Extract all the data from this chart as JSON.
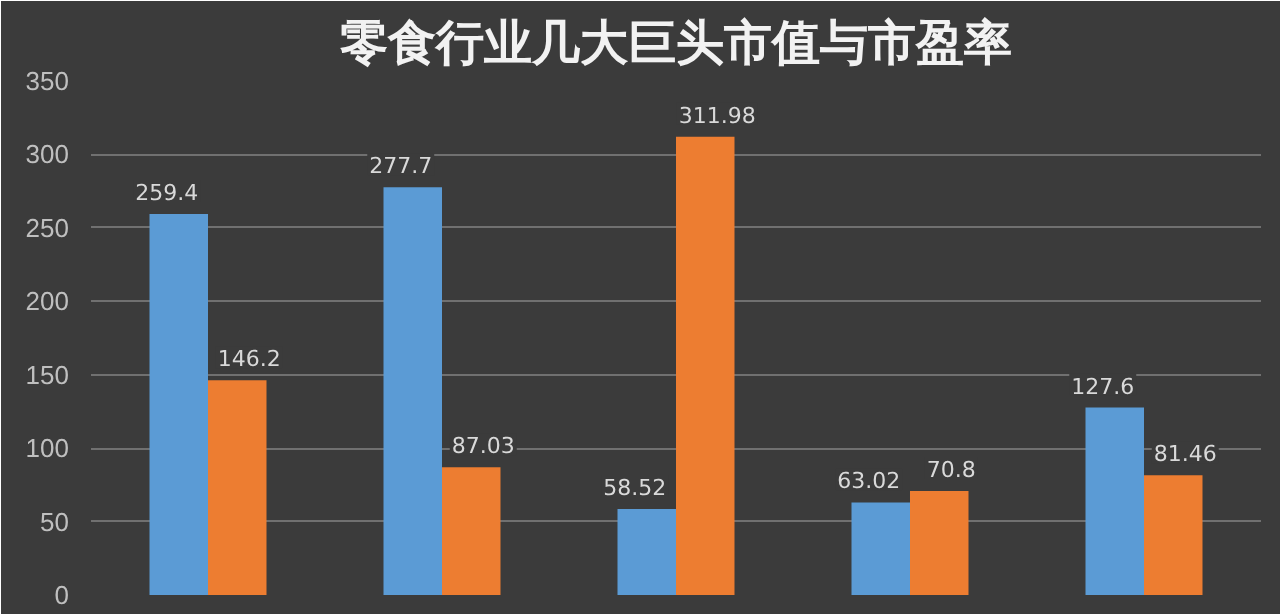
{
  "chart_data": {
    "type": "bar",
    "title": "零食行业几大巨头市值与市盈率",
    "categories": [
      null,
      null,
      null,
      null,
      null
    ],
    "series": [
      {
        "color": "#5b9bd5",
        "values": [
          259.4,
          277.7,
          58.52,
          63.02,
          127.6
        ]
      },
      {
        "color": "#ed7d31",
        "values": [
          146.2,
          87.03,
          311.98,
          70.8,
          81.46
        ]
      }
    ],
    "ylim": [
      0,
      350
    ],
    "yticks": [
      0,
      50,
      100,
      150,
      200,
      250,
      300,
      350
    ],
    "grid": "y",
    "data_labels": true,
    "tick_labels": "y"
  }
}
